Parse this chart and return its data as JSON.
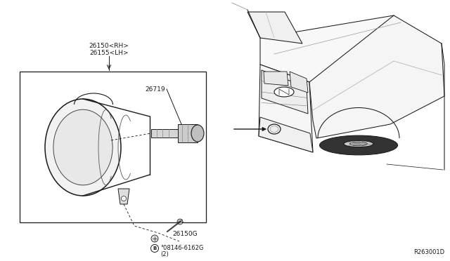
{
  "bg_color": "#ffffff",
  "line_color": "#1a1a1a",
  "fig_width": 6.4,
  "fig_height": 3.72,
  "dpi": 100,
  "labels": {
    "part_main_1": "26150<RH>",
    "part_main_2": "26155<LH>",
    "part_26719": "26719",
    "part_26150G": "26150G",
    "part_screw_num": "°08146-6162G",
    "part_screw_qty": "(2)",
    "ref_code": "R263001D"
  }
}
